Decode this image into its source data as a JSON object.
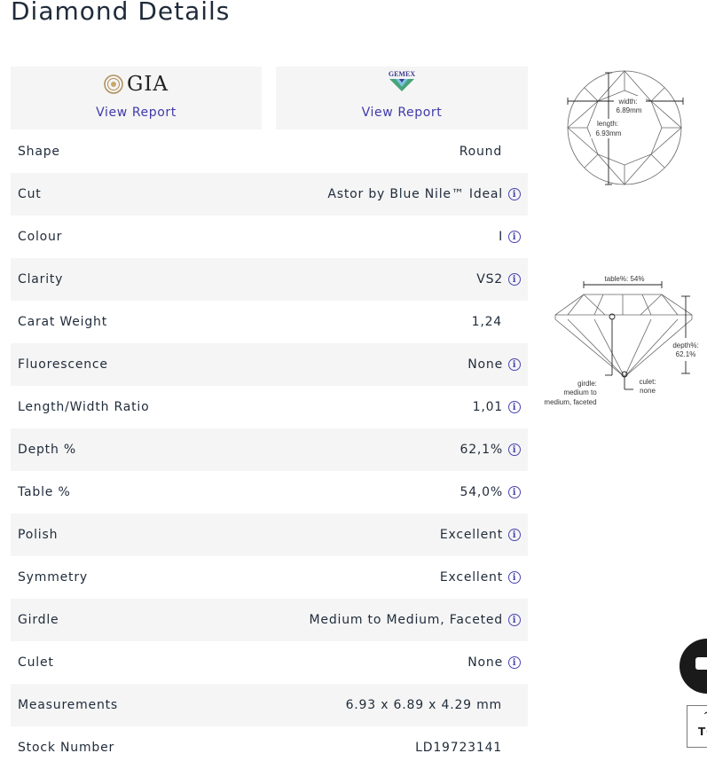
{
  "page": {
    "title": "Diamond Details"
  },
  "certificates": [
    {
      "logo_text": "GIA",
      "icon": "gia-seal-icon",
      "link_label": "View Report"
    },
    {
      "logo_text": "GEMEX",
      "icon": "gemex-diamond-icon",
      "link_label": "View Report"
    }
  ],
  "details": [
    {
      "label": "Shape",
      "value": "Round",
      "info": false
    },
    {
      "label": "Cut",
      "value": "Astor by Blue Nile™ Ideal",
      "info": true
    },
    {
      "label": "Colour",
      "value": "I",
      "info": true
    },
    {
      "label": "Clarity",
      "value": "VS2",
      "info": true
    },
    {
      "label": "Carat Weight",
      "value": "1,24",
      "info": false
    },
    {
      "label": "Fluorescence",
      "value": "None",
      "info": true
    },
    {
      "label": "Length/Width Ratio",
      "value": "1,01",
      "info": true
    },
    {
      "label": "Depth %",
      "value": "62,1%",
      "info": true
    },
    {
      "label": "Table %",
      "value": "54,0%",
      "info": true
    },
    {
      "label": "Polish",
      "value": "Excellent",
      "info": true
    },
    {
      "label": "Symmetry",
      "value": "Excellent",
      "info": true
    },
    {
      "label": "Girdle",
      "value": "Medium to Medium, Faceted",
      "info": true
    },
    {
      "label": "Culet",
      "value": "None",
      "info": true
    },
    {
      "label": "Measurements",
      "value": "6.93 x 6.89 x 4.29 mm",
      "info": false
    },
    {
      "label": "Stock Number",
      "value": "LD19723141",
      "info": false
    }
  ],
  "diagram_top": {
    "width_label": "width:",
    "width_value": "6.89mm",
    "length_label": "length:",
    "length_value": "6.93mm"
  },
  "diagram_side": {
    "table_label": "table%: 54%",
    "depth_label": "depth%:",
    "depth_value": "62.1%",
    "culet_label": "culet:",
    "culet_value": "none",
    "girdle_label": "girdle:",
    "girdle_value_1": "medium to",
    "girdle_value_2": "medium, faceted"
  },
  "back_to_top": {
    "label": "TO"
  },
  "colors": {
    "link": "#3f3aa8",
    "stripe": "#f5f5f5",
    "text": "#1f2b3a"
  }
}
